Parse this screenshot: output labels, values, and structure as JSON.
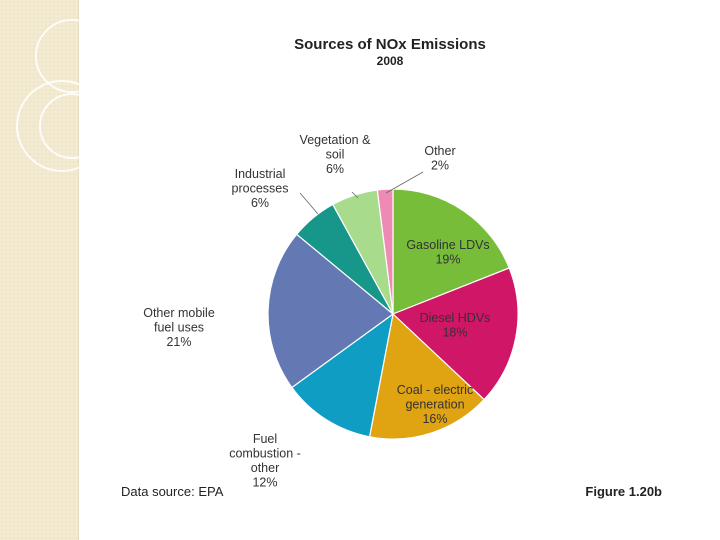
{
  "chart_data": {
    "type": "pie",
    "title": "Sources of NOx Emissions",
    "subtitle": "2008",
    "slices": [
      {
        "name": "Gasoline LDVs",
        "value": 19,
        "label": "19%",
        "color": "#77bd3a"
      },
      {
        "name": "Diesel HDVs",
        "value": 18,
        "label": "18%",
        "color": "#cf1667"
      },
      {
        "name": "Coal - electric generation",
        "value": 16,
        "label": "16%",
        "color": "#e0a312"
      },
      {
        "name": "Fuel combustion - other",
        "value": 12,
        "label": "12%",
        "color": "#0f9dc4"
      },
      {
        "name": "Other mobile fuel uses",
        "value": 21,
        "label": "21%",
        "color": "#6478b4"
      },
      {
        "name": "Industrial processes",
        "value": 6,
        "label": "6%",
        "color": "#16978a"
      },
      {
        "name": "Vegetation & soil",
        "value": 6,
        "label": "6%",
        "color": "#a8dc8c"
      },
      {
        "name": "Other",
        "value": 2,
        "label": "2%",
        "color": "#ef8ab4"
      }
    ],
    "label_lines": [
      [
        "Gasoline LDVs",
        "19%"
      ],
      [
        "Diesel HDVs",
        "18%"
      ],
      [
        "Coal - electric",
        "generation",
        "16%"
      ],
      [
        "Fuel",
        "combustion -",
        "other",
        "12%"
      ],
      [
        "Other mobile",
        "fuel uses",
        "21%"
      ],
      [
        "Industrial",
        "processes",
        "6%"
      ],
      [
        "Vegetation &",
        "soil",
        "6%"
      ],
      [
        "Other",
        "2%"
      ]
    ]
  },
  "footer": {
    "source": "Data source:  EPA",
    "figure": "Figure 1.20b"
  }
}
